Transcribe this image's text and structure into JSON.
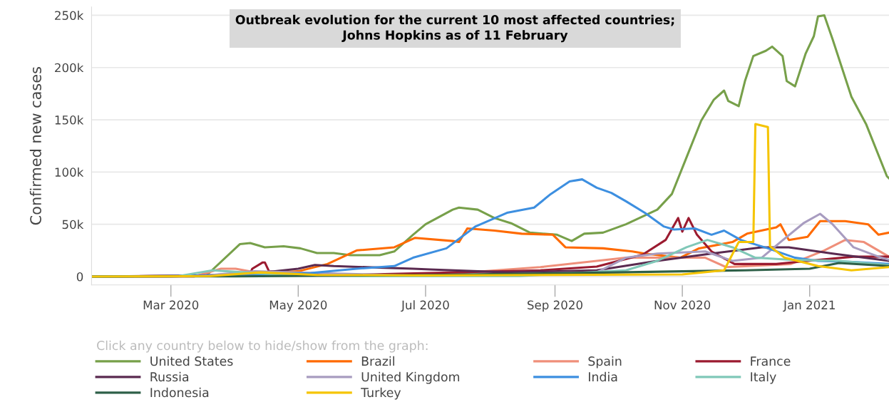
{
  "chart_data": {
    "type": "line",
    "title": "Outbreak evolution for the current 10 most affected countries;\nJohns Hopkins as of 11 February",
    "ylabel": "Confirmed new cases",
    "legend_title": "Click any country below to hide/show from the graph:",
    "legend": "bottom",
    "grid": "y",
    "line_style": "solid",
    "xlim": [
      "2020-01-23",
      "2021-02-08"
    ],
    "xticks": [
      {
        "value": "2020-03-01",
        "label": "Mar 2020"
      },
      {
        "value": "2020-05-01",
        "label": "May 2020"
      },
      {
        "value": "2020-07-01",
        "label": "Jul 2020"
      },
      {
        "value": "2020-09-01",
        "label": "Sep 2020"
      },
      {
        "value": "2020-11-01",
        "label": "Nov 2020"
      },
      {
        "value": "2021-01-01",
        "label": "Jan 2021"
      }
    ],
    "ylim": [
      -8000,
      258000
    ],
    "yticks": [
      0,
      {
        "value": 50000,
        "label": "50k"
      },
      {
        "value": 100000,
        "label": "100k"
      },
      {
        "value": 150000,
        "label": "150k"
      },
      {
        "value": 200000,
        "label": "200k"
      },
      {
        "value": 250000,
        "label": "250k"
      }
    ],
    "series": [
      {
        "name": "United States",
        "color": "#77a04a",
        "x": [
          "2020-01-23",
          "2020-03-01",
          "2020-03-18",
          "2020-04-03",
          "2020-04-08",
          "2020-04-15",
          "2020-04-24",
          "2020-05-02",
          "2020-05-10",
          "2020-05-18",
          "2020-05-26",
          "2020-06-09",
          "2020-06-16",
          "2020-06-25",
          "2020-07-01",
          "2020-07-14",
          "2020-07-17",
          "2020-07-26",
          "2020-08-03",
          "2020-08-11",
          "2020-08-20",
          "2020-09-02",
          "2020-09-09",
          "2020-09-15",
          "2020-09-24",
          "2020-10-05",
          "2020-10-20",
          "2020-10-27",
          "2020-11-03",
          "2020-11-10",
          "2020-11-16",
          "2020-11-21",
          "2020-11-23",
          "2020-11-28",
          "2020-12-01",
          "2020-12-05",
          "2020-12-11",
          "2020-12-14",
          "2020-12-19",
          "2020-12-21",
          "2020-12-25",
          "2020-12-30",
          "2021-01-03",
          "2021-01-05",
          "2021-01-08",
          "2021-01-12",
          "2021-01-21",
          "2021-01-28",
          "2021-02-07",
          "2021-02-08"
        ],
        "values": [
          0,
          0,
          1000,
          31000,
          32000,
          28000,
          29000,
          27000,
          22500,
          22500,
          20500,
          20500,
          24000,
          40000,
          50000,
          64000,
          66000,
          64000,
          56000,
          51000,
          42000,
          40000,
          34000,
          41000,
          42000,
          50000,
          64000,
          79000,
          114000,
          149000,
          169000,
          178000,
          168000,
          163000,
          187000,
          211000,
          216000,
          220000,
          211000,
          187000,
          182000,
          213000,
          230000,
          249000,
          250000,
          227000,
          172000,
          146000,
          96000,
          94000
        ]
      },
      {
        "name": "Brazil",
        "color": "#ff6a00",
        "x": [
          "2020-01-23",
          "2020-04-01",
          "2020-05-01",
          "2020-05-15",
          "2020-05-29",
          "2020-06-16",
          "2020-06-26",
          "2020-07-14",
          "2020-07-17",
          "2020-07-21",
          "2020-08-03",
          "2020-08-16",
          "2020-08-31",
          "2020-09-06",
          "2020-09-24",
          "2020-10-08",
          "2020-10-14",
          "2020-10-31",
          "2020-11-09",
          "2020-11-25",
          "2020-12-02",
          "2020-12-16",
          "2020-12-18",
          "2020-12-22",
          "2020-12-31",
          "2021-01-06",
          "2021-01-18",
          "2021-01-29",
          "2021-02-03",
          "2021-02-08"
        ],
        "values": [
          0,
          1000,
          5000,
          12000,
          25000,
          28000,
          37000,
          34000,
          33000,
          46000,
          44000,
          41000,
          40000,
          28000,
          27000,
          24000,
          22000,
          18000,
          27000,
          33000,
          41000,
          47000,
          50000,
          35000,
          38000,
          53000,
          53000,
          50000,
          40000,
          42000
        ]
      },
      {
        "name": "Spain",
        "color": "#ef8f7a",
        "x": [
          "2020-01-23",
          "2020-03-12",
          "2020-03-25",
          "2020-04-01",
          "2020-04-08",
          "2020-04-19",
          "2020-07-01",
          "2020-08-25",
          "2020-10-05",
          "2020-11-12",
          "2020-11-22",
          "2020-12-23",
          "2021-01-08",
          "2021-01-18",
          "2021-01-27",
          "2021-02-08"
        ],
        "values": [
          0,
          0,
          7500,
          7500,
          5000,
          1000,
          1000,
          9000,
          18000,
          18000,
          9000,
          12000,
          25000,
          35000,
          33000,
          19000
        ]
      },
      {
        "name": "France",
        "color": "#9b1b30",
        "x": [
          "2020-01-23",
          "2020-03-15",
          "2020-04-08",
          "2020-04-09",
          "2020-04-14",
          "2020-04-15",
          "2020-04-17",
          "2020-05-15",
          "2020-08-25",
          "2020-09-21",
          "2020-10-13",
          "2020-10-24",
          "2020-10-30",
          "2020-11-01",
          "2020-11-04",
          "2020-11-08",
          "2020-11-15",
          "2020-11-26",
          "2020-12-16",
          "2020-12-31",
          "2021-01-22",
          "2021-02-08"
        ],
        "values": [
          0,
          1000,
          3000,
          7500,
          13500,
          13500,
          5000,
          1000,
          6000,
          9500,
          21000,
          35000,
          56000,
          43000,
          56000,
          40000,
          24000,
          12000,
          12000,
          15000,
          19000,
          19000
        ]
      },
      {
        "name": "Russia",
        "color": "#5a2a50",
        "x": [
          "2020-01-23",
          "2020-04-01",
          "2020-05-01",
          "2020-05-09",
          "2020-05-18",
          "2020-06-25",
          "2020-07-03",
          "2020-08-09",
          "2020-09-21",
          "2020-10-20",
          "2020-11-15",
          "2020-12-09",
          "2020-12-22",
          "2021-01-12",
          "2021-02-08"
        ],
        "values": [
          0,
          1000,
          7500,
          11000,
          10000,
          7500,
          6800,
          4000,
          6000,
          15000,
          22000,
          28000,
          28000,
          22000,
          15000
        ]
      },
      {
        "name": "United Kingdom",
        "color": "#a89cc0",
        "x": [
          "2020-01-23",
          "2020-03-15",
          "2020-04-10",
          "2020-05-15",
          "2020-07-01",
          "2020-09-21",
          "2020-10-05",
          "2020-10-20",
          "2020-11-12",
          "2020-11-25",
          "2020-12-09",
          "2020-12-18",
          "2020-12-29",
          "2021-01-06",
          "2021-01-12",
          "2021-01-22",
          "2021-02-03",
          "2021-02-08"
        ],
        "values": [
          0,
          500,
          5000,
          3000,
          700,
          4000,
          18000,
          22000,
          24000,
          15000,
          18000,
          33000,
          51000,
          60000,
          50000,
          28000,
          19000,
          16000
        ]
      },
      {
        "name": "India",
        "color": "#3d8fe0",
        "x": [
          "2020-01-23",
          "2020-04-01",
          "2020-05-07",
          "2020-05-29",
          "2020-06-16",
          "2020-06-25",
          "2020-07-11",
          "2020-07-25",
          "2020-08-09",
          "2020-08-22",
          "2020-08-30",
          "2020-09-08",
          "2020-09-14",
          "2020-09-21",
          "2020-09-28",
          "2020-10-05",
          "2020-10-14",
          "2020-10-23",
          "2020-10-28",
          "2020-11-07",
          "2020-11-15",
          "2020-11-21",
          "2020-11-29",
          "2020-12-12",
          "2020-12-25",
          "2021-01-05",
          "2021-01-22",
          "2021-02-08"
        ],
        "values": [
          0,
          1000,
          3400,
          7500,
          10000,
          18000,
          27000,
          48000,
          61000,
          66000,
          79000,
          91000,
          93000,
          85000,
          80000,
          72000,
          61000,
          48000,
          45000,
          46000,
          40000,
          44000,
          35000,
          27000,
          18000,
          15000,
          14000,
          12000
        ]
      },
      {
        "name": "Italy",
        "color": "#80c8b8",
        "x": [
          "2020-01-23",
          "2020-03-05",
          "2020-03-21",
          "2020-04-01",
          "2020-04-25",
          "2020-06-01",
          "2020-08-15",
          "2020-10-05",
          "2020-10-20",
          "2020-11-03",
          "2020-11-13",
          "2020-11-25",
          "2020-12-06",
          "2020-12-23",
          "2021-01-15",
          "2021-02-08"
        ],
        "values": [
          0,
          500,
          6000,
          4500,
          1500,
          300,
          500,
          6000,
          15000,
          28000,
          35000,
          28000,
          18000,
          16000,
          15000,
          11000
        ]
      },
      {
        "name": "Indonesia",
        "color": "#2e6048",
        "x": [
          "2020-01-23",
          "2020-04-01",
          "2020-07-01",
          "2020-10-01",
          "2020-12-01",
          "2021-01-01",
          "2021-01-15",
          "2021-02-08"
        ],
        "values": [
          0,
          200,
          1500,
          4000,
          6000,
          7500,
          13000,
          10000
        ]
      },
      {
        "name": "Turkey",
        "color": "#f5c400",
        "x": [
          "2020-01-23",
          "2020-03-20",
          "2020-04-13",
          "2020-05-10",
          "2020-07-01",
          "2020-11-01",
          "2020-11-21",
          "2020-11-28",
          "2020-12-05",
          "2020-12-06",
          "2020-12-12",
          "2020-12-13",
          "2020-12-20",
          "2021-01-05",
          "2021-01-21",
          "2021-02-08"
        ],
        "values": [
          0,
          500,
          4000,
          1500,
          1000,
          2000,
          6000,
          33000,
          33000,
          146000,
          143000,
          29000,
          18000,
          10000,
          6000,
          9000
        ]
      }
    ]
  }
}
